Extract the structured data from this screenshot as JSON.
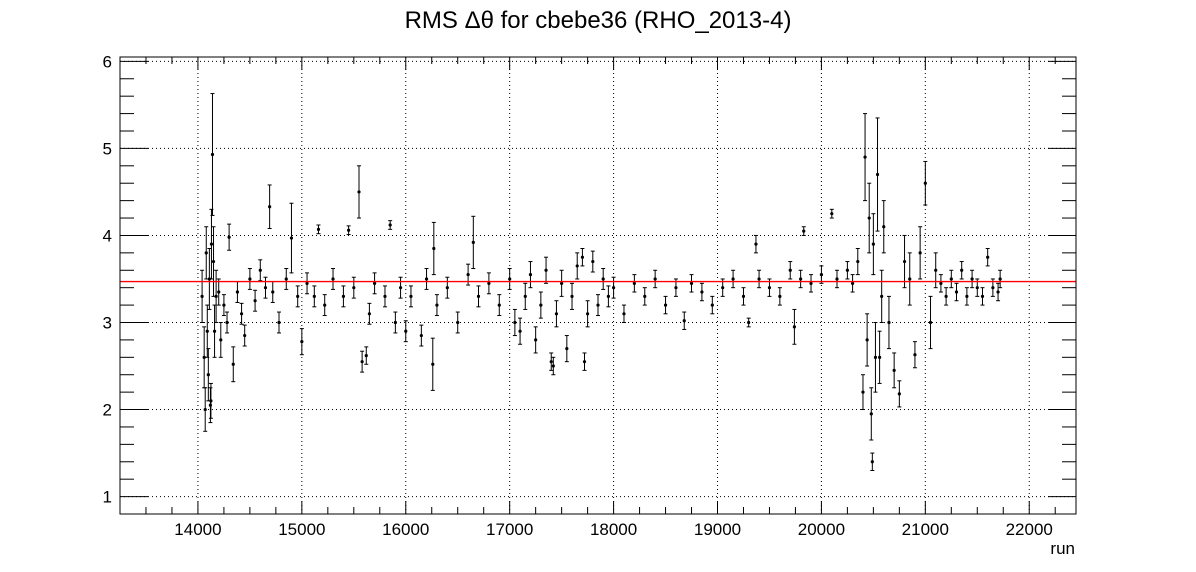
{
  "chart_data": {
    "type": "scatter",
    "title": "RMS Δθ for cbebe36 (RHO_2013-4)",
    "xlabel": "run",
    "ylabel": "",
    "xlim": [
      13250,
      22450
    ],
    "ylim": [
      0.8,
      6.05
    ],
    "x_ticks": [
      14000,
      15000,
      16000,
      17000,
      18000,
      19000,
      20000,
      21000,
      22000
    ],
    "y_ticks": [
      1,
      2,
      3,
      4,
      5,
      6
    ],
    "grid": true,
    "fit_line": {
      "y": 3.47,
      "color": "#ff0000"
    },
    "marker_color": "#000000",
    "series": [
      {
        "points": [
          [
            14040,
            3.3,
            0.3
          ],
          [
            14060,
            2.6,
            0.35
          ],
          [
            14070,
            2.0,
            0.25
          ],
          [
            14080,
            3.8,
            0.3
          ],
          [
            14090,
            2.9,
            0.3
          ],
          [
            14100,
            2.4,
            0.3
          ],
          [
            14110,
            3.5,
            0.35
          ],
          [
            14120,
            2.05,
            0.2
          ],
          [
            14125,
            2.1,
            0.2
          ],
          [
            14130,
            3.9,
            0.4
          ],
          [
            14140,
            4.93,
            0.7
          ],
          [
            14150,
            3.7,
            0.4
          ],
          [
            14160,
            2.9,
            0.3
          ],
          [
            14175,
            3.3,
            0.3
          ],
          [
            14200,
            3.35,
            0.15
          ],
          [
            14220,
            2.8,
            0.2
          ],
          [
            14250,
            3.2,
            0.12
          ],
          [
            14280,
            3.0,
            0.12
          ],
          [
            14300,
            3.98,
            0.15
          ],
          [
            14340,
            2.52,
            0.2
          ],
          [
            14380,
            3.35,
            0.12
          ],
          [
            14420,
            3.1,
            0.12
          ],
          [
            14450,
            2.85,
            0.12
          ],
          [
            14500,
            3.5,
            0.12
          ],
          [
            14550,
            3.25,
            0.12
          ],
          [
            14600,
            3.6,
            0.12
          ],
          [
            14650,
            3.4,
            0.12
          ],
          [
            14690,
            4.33,
            0.25
          ],
          [
            14720,
            3.35,
            0.12
          ],
          [
            14780,
            3.0,
            0.12
          ],
          [
            14850,
            3.5,
            0.12
          ],
          [
            14900,
            3.97,
            0.4
          ],
          [
            14960,
            3.3,
            0.12
          ],
          [
            15000,
            2.78,
            0.15
          ],
          [
            15050,
            3.45,
            0.12
          ],
          [
            15120,
            3.3,
            0.12
          ],
          [
            15160,
            4.07,
            0.05
          ],
          [
            15220,
            3.2,
            0.12
          ],
          [
            15300,
            3.5,
            0.12
          ],
          [
            15400,
            3.3,
            0.12
          ],
          [
            15450,
            4.06,
            0.05
          ],
          [
            15500,
            3.4,
            0.12
          ],
          [
            15550,
            4.5,
            0.3
          ],
          [
            15580,
            2.55,
            0.12
          ],
          [
            15620,
            2.62,
            0.1
          ],
          [
            15650,
            3.1,
            0.12
          ],
          [
            15700,
            3.45,
            0.12
          ],
          [
            15800,
            3.3,
            0.12
          ],
          [
            15850,
            4.12,
            0.05
          ],
          [
            15900,
            3.0,
            0.12
          ],
          [
            15950,
            3.4,
            0.12
          ],
          [
            16000,
            2.9,
            0.12
          ],
          [
            16050,
            3.3,
            0.12
          ],
          [
            16150,
            2.85,
            0.12
          ],
          [
            16200,
            3.5,
            0.12
          ],
          [
            16260,
            2.52,
            0.3
          ],
          [
            16270,
            3.85,
            0.3
          ],
          [
            16300,
            3.2,
            0.12
          ],
          [
            16400,
            3.4,
            0.12
          ],
          [
            16500,
            3.0,
            0.12
          ],
          [
            16600,
            3.55,
            0.12
          ],
          [
            16650,
            3.92,
            0.3
          ],
          [
            16700,
            3.3,
            0.12
          ],
          [
            16800,
            3.45,
            0.12
          ],
          [
            16900,
            3.2,
            0.12
          ],
          [
            17000,
            3.5,
            0.12
          ],
          [
            17050,
            3.0,
            0.15
          ],
          [
            17100,
            2.9,
            0.15
          ],
          [
            17150,
            3.3,
            0.15
          ],
          [
            17200,
            3.55,
            0.15
          ],
          [
            17250,
            2.8,
            0.15
          ],
          [
            17300,
            3.2,
            0.15
          ],
          [
            17350,
            3.6,
            0.15
          ],
          [
            17400,
            2.55,
            0.1
          ],
          [
            17420,
            2.5,
            0.1
          ],
          [
            17450,
            3.1,
            0.15
          ],
          [
            17500,
            3.45,
            0.15
          ],
          [
            17550,
            2.7,
            0.15
          ],
          [
            17600,
            3.3,
            0.15
          ],
          [
            17650,
            3.65,
            0.15
          ],
          [
            17700,
            3.75,
            0.1
          ],
          [
            17720,
            2.55,
            0.1
          ],
          [
            17750,
            3.1,
            0.15
          ],
          [
            17800,
            3.7,
            0.12
          ],
          [
            17850,
            3.2,
            0.12
          ],
          [
            17900,
            3.5,
            0.12
          ],
          [
            17950,
            3.3,
            0.12
          ],
          [
            18000,
            3.4,
            0.12
          ],
          [
            18100,
            3.1,
            0.1
          ],
          [
            18200,
            3.45,
            0.1
          ],
          [
            18300,
            3.3,
            0.1
          ],
          [
            18400,
            3.5,
            0.1
          ],
          [
            18500,
            3.2,
            0.1
          ],
          [
            18600,
            3.4,
            0.1
          ],
          [
            18680,
            3.02,
            0.1
          ],
          [
            18750,
            3.45,
            0.1
          ],
          [
            18850,
            3.35,
            0.1
          ],
          [
            18950,
            3.2,
            0.1
          ],
          [
            19050,
            3.4,
            0.1
          ],
          [
            19150,
            3.5,
            0.1
          ],
          [
            19250,
            3.3,
            0.1
          ],
          [
            19300,
            3.0,
            0.05
          ],
          [
            19370,
            3.9,
            0.1
          ],
          [
            19400,
            3.5,
            0.1
          ],
          [
            19500,
            3.4,
            0.1
          ],
          [
            19600,
            3.3,
            0.1
          ],
          [
            19700,
            3.6,
            0.1
          ],
          [
            19740,
            2.95,
            0.2
          ],
          [
            19800,
            3.5,
            0.1
          ],
          [
            19830,
            4.05,
            0.05
          ],
          [
            19900,
            3.45,
            0.1
          ],
          [
            20000,
            3.55,
            0.1
          ],
          [
            20100,
            4.25,
            0.05
          ],
          [
            20150,
            3.5,
            0.1
          ],
          [
            20250,
            3.6,
            0.1
          ],
          [
            20300,
            3.45,
            0.1
          ],
          [
            20350,
            3.7,
            0.15
          ],
          [
            20400,
            2.2,
            0.2
          ],
          [
            20420,
            4.9,
            0.5
          ],
          [
            20440,
            2.8,
            0.3
          ],
          [
            20460,
            4.2,
            0.4
          ],
          [
            20480,
            1.95,
            0.3
          ],
          [
            20490,
            1.4,
            0.1
          ],
          [
            20500,
            3.9,
            0.35
          ],
          [
            20520,
            2.6,
            0.4
          ],
          [
            20540,
            4.7,
            0.65
          ],
          [
            20560,
            2.6,
            0.3
          ],
          [
            20580,
            3.3,
            0.3
          ],
          [
            20600,
            4.1,
            0.3
          ],
          [
            20650,
            3.0,
            0.3
          ],
          [
            20700,
            2.45,
            0.2
          ],
          [
            20750,
            2.18,
            0.15
          ],
          [
            20800,
            3.7,
            0.3
          ],
          [
            20850,
            3.5,
            0.3
          ],
          [
            20900,
            2.63,
            0.15
          ],
          [
            20950,
            3.8,
            0.3
          ],
          [
            21000,
            4.6,
            0.25
          ],
          [
            21050,
            3.0,
            0.3
          ],
          [
            21100,
            3.6,
            0.2
          ],
          [
            21150,
            3.45,
            0.1
          ],
          [
            21200,
            3.3,
            0.1
          ],
          [
            21250,
            3.5,
            0.1
          ],
          [
            21300,
            3.35,
            0.1
          ],
          [
            21350,
            3.6,
            0.1
          ],
          [
            21400,
            3.3,
            0.1
          ],
          [
            21450,
            3.5,
            0.1
          ],
          [
            21500,
            3.4,
            0.1
          ],
          [
            21550,
            3.3,
            0.1
          ],
          [
            21600,
            3.75,
            0.1
          ],
          [
            21650,
            3.4,
            0.1
          ],
          [
            21700,
            3.35,
            0.1
          ],
          [
            21720,
            3.5,
            0.1
          ]
        ]
      }
    ]
  }
}
